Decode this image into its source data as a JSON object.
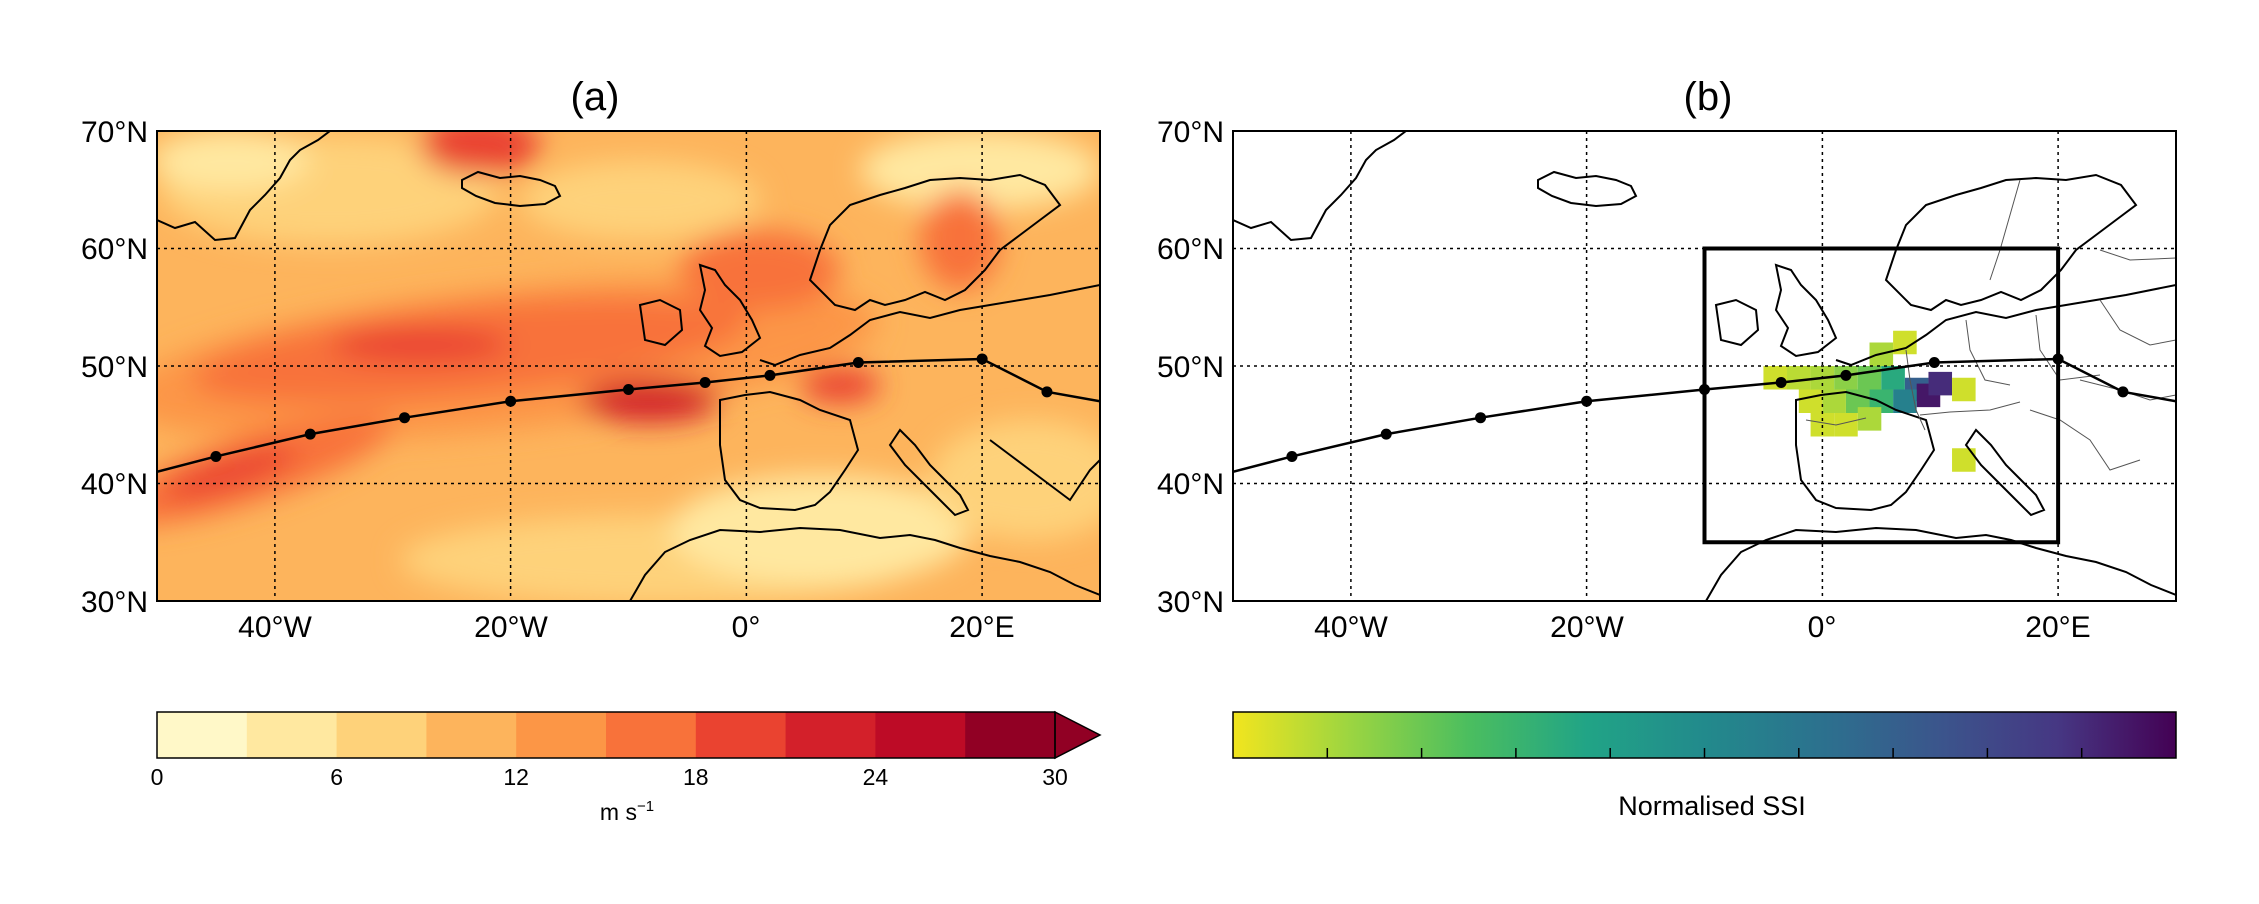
{
  "panels": [
    {
      "title": "(a)",
      "lat_labels": [
        "70°N",
        "60°N",
        "50°N",
        "40°N",
        "30°N"
      ],
      "lon_labels": [
        "40°W",
        "20°W",
        "0°",
        "20°E"
      ]
    },
    {
      "title": "(b)",
      "lat_labels": [
        "70°N",
        "60°N",
        "50°N",
        "40°N",
        "30°N"
      ],
      "lon_labels": [
        "40°W",
        "20°W",
        "0°",
        "20°E"
      ]
    }
  ],
  "colorbar_a": {
    "ticks": [
      "0",
      "6",
      "12",
      "18",
      "24",
      "30"
    ],
    "unit": "m s",
    "unit_sup": "−1",
    "colors": [
      "#fff8c8",
      "#ffe8a0",
      "#fed27a",
      "#fdb45c",
      "#fc9646",
      "#f8723a",
      "#ea4330",
      "#d3202a",
      "#bd0b26",
      "#910024"
    ]
  },
  "colorbar_b": {
    "label": "Normalised SSI",
    "stops": [
      "#f2e51e",
      "#9bd541",
      "#4bbe5f",
      "#21a486",
      "#228a8c",
      "#2c718e",
      "#3b558c",
      "#463783",
      "#440154"
    ]
  },
  "chart_data": [
    {
      "type": "heatmap",
      "title": "(a)",
      "x_range": [
        -50,
        30
      ],
      "y_range": [
        30,
        70
      ],
      "colorbar_range": [
        0,
        30
      ],
      "colorbar_unit": "m s-1",
      "storm_track": [
        [
          -50,
          41
        ],
        [
          -45,
          42.3
        ],
        [
          -37,
          44.2
        ],
        [
          -29,
          45.6
        ],
        [
          -20,
          47
        ],
        [
          -10,
          48
        ],
        [
          -3.5,
          48.6
        ],
        [
          2,
          49.2
        ],
        [
          9.5,
          50.3
        ],
        [
          20,
          50.6
        ],
        [
          25.5,
          47.8
        ],
        [
          30,
          47
        ]
      ],
      "track_markers": [
        [
          -45,
          42.3
        ],
        [
          -37,
          44.2
        ],
        [
          -29,
          45.6
        ],
        [
          -20,
          47
        ],
        [
          -10,
          48
        ],
        [
          -3.5,
          48.6
        ],
        [
          2,
          49.2
        ],
        [
          9.5,
          50.3
        ],
        [
          20,
          50.6
        ],
        [
          25.5,
          47.8
        ]
      ],
      "wind_bands": [
        {
          "name": "jet-core-west",
          "lon": [
            -50,
            -30
          ],
          "lat": [
            38,
            46
          ],
          "speed": 20
        },
        {
          "name": "jet-core-mid",
          "lon": [
            -40,
            -5
          ],
          "lat": [
            44,
            55
          ],
          "speed": 21
        },
        {
          "name": "jet-core-east",
          "lon": [
            -12,
            -1
          ],
          "lat": [
            45,
            49
          ],
          "speed": 24
        },
        {
          "name": "iceland-max",
          "lon": [
            -25,
            -16
          ],
          "lat": [
            64,
            70
          ],
          "speed": 22
        },
        {
          "name": "north-sea",
          "lon": [
            -1,
            8
          ],
          "lat": [
            51,
            60
          ],
          "speed": 21
        }
      ]
    },
    {
      "type": "heatmap",
      "title": "(b)",
      "x_range": [
        -50,
        30
      ],
      "y_range": [
        30,
        70
      ],
      "colorbar_label": "Normalised SSI",
      "domain_box": {
        "lon": [
          -10,
          20
        ],
        "lat": [
          35,
          60
        ]
      },
      "storm_track": [
        [
          -50,
          41
        ],
        [
          -45,
          42.3
        ],
        [
          -37,
          44.2
        ],
        [
          -29,
          45.6
        ],
        [
          -20,
          47
        ],
        [
          -10,
          48
        ],
        [
          -3.5,
          48.6
        ],
        [
          2,
          49.2
        ],
        [
          9.5,
          50.3
        ],
        [
          20,
          50.6
        ],
        [
          25.5,
          47.8
        ],
        [
          30,
          47
        ]
      ],
      "track_markers": [
        [
          -45,
          42.3
        ],
        [
          -37,
          44.2
        ],
        [
          -29,
          45.6
        ],
        [
          -20,
          47
        ],
        [
          -10,
          48
        ],
        [
          -3.5,
          48.6
        ],
        [
          2,
          49.2
        ],
        [
          9.5,
          50.3
        ],
        [
          20,
          50.6
        ],
        [
          25.5,
          47.8
        ]
      ],
      "ssi_cells": [
        {
          "lon": -4,
          "lat": 49,
          "v": 0.05
        },
        {
          "lon": -2,
          "lat": 49,
          "v": 0.08
        },
        {
          "lon": 0,
          "lat": 49,
          "v": 0.1
        },
        {
          "lon": 2,
          "lat": 49,
          "v": 0.15
        },
        {
          "lon": 4,
          "lat": 49,
          "v": 0.2
        },
        {
          "lon": 6,
          "lat": 49,
          "v": 0.35
        },
        {
          "lon": 8,
          "lat": 48,
          "v": 0.7
        },
        {
          "lon": 9,
          "lat": 47.5,
          "v": 0.95
        },
        {
          "lon": 10,
          "lat": 48.5,
          "v": 0.9
        },
        {
          "lon": 7,
          "lat": 47,
          "v": 0.55
        },
        {
          "lon": 5,
          "lat": 47,
          "v": 0.3
        },
        {
          "lon": 3,
          "lat": 47,
          "v": 0.2
        },
        {
          "lon": 1,
          "lat": 47,
          "v": 0.1
        },
        {
          "lon": -1,
          "lat": 47,
          "v": 0.05
        },
        {
          "lon": 2,
          "lat": 45,
          "v": 0.05
        },
        {
          "lon": 5,
          "lat": 51,
          "v": 0.1
        },
        {
          "lon": 7,
          "lat": 52,
          "v": 0.05
        },
        {
          "lon": 12,
          "lat": 48,
          "v": 0.05
        },
        {
          "lon": 12,
          "lat": 42,
          "v": 0.05
        },
        {
          "lon": 4,
          "lat": 45.5,
          "v": 0.1
        },
        {
          "lon": 0,
          "lat": 45,
          "v": 0.05
        }
      ]
    }
  ]
}
